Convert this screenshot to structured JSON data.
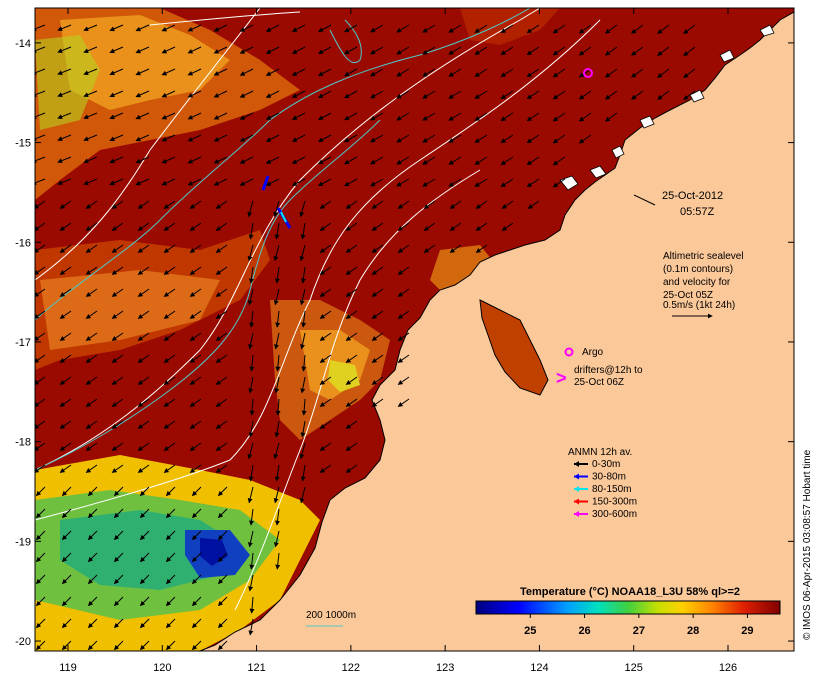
{
  "map": {
    "lon_ticks": [
      "119",
      "120",
      "121",
      "122",
      "123",
      "124",
      "125",
      "126"
    ],
    "lat_ticks": [
      "-14",
      "-15",
      "-16",
      "-17",
      "-18",
      "-19",
      "-20"
    ],
    "lon_range": [
      118.65,
      126.7
    ],
    "lat_range": [
      -20.1,
      -13.65
    ]
  },
  "annotations": {
    "datetime_line1": "25-Oct-2012",
    "datetime_line2": "05:57Z",
    "alt_line1": "Altimetric sealevel",
    "alt_line2": "(0.1m contours)",
    "alt_line3": "and velocity for",
    "alt_line4": "25-Oct 05Z",
    "alt_line5": "0.5m/s (1kt 24h)",
    "argo_label": "Argo",
    "drifters_line1": "drifters@12h to",
    "drifters_line2": "25-Oct 06Z",
    "scale_label": "200  1000m",
    "anmn_title": "ANMN 12h av.",
    "credit": "© IMOS 06-Apr-2015 03:08:57 Hobart time"
  },
  "legend_anmn": [
    {
      "label": "0-30m",
      "color": "#000000"
    },
    {
      "label": "30-80m",
      "color": "#0000ff"
    },
    {
      "label": "80-150m",
      "color": "#00e5ee"
    },
    {
      "label": "150-300m",
      "color": "#ff0000"
    },
    {
      "label": "300-600m",
      "color": "#ff00ff"
    }
  ],
  "colorbar": {
    "title": "Temperature (°C) NOAA18_L3U 58% ql>=2",
    "ticks": [
      "25",
      "26",
      "27",
      "28",
      "29"
    ],
    "range": [
      24.0,
      29.6
    ]
  },
  "colors": {
    "land": "#fbc89a",
    "sst_warm": "#9b0a00",
    "sst_mid": "#d24a00",
    "sst_cool": "#3cb43c",
    "contour": "#ffffff",
    "isobath": "#4fc8c8",
    "argo": "#ff00ff"
  }
}
